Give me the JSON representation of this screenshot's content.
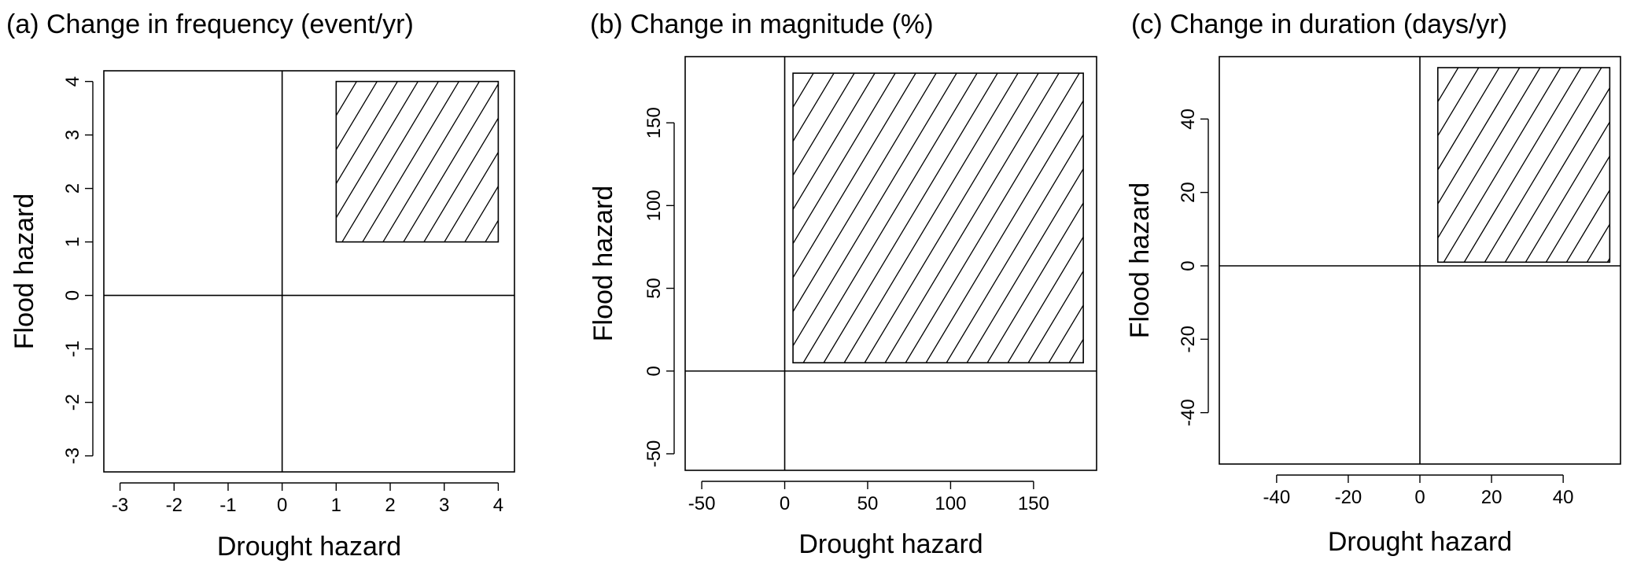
{
  "chart_data": [
    {
      "type": "area",
      "title": "(a) Change in frequency (event/yr)",
      "xlabel": "Drought hazard",
      "ylabel": "Flood hazard",
      "xlim": [
        -3.3,
        4.3
      ],
      "ylim": [
        -3.3,
        4.2
      ],
      "xticks": [
        -3,
        -2,
        -1,
        0,
        1,
        2,
        3,
        4
      ],
      "yticks": [
        -3,
        -2,
        -1,
        0,
        1,
        2,
        3,
        4
      ],
      "reference_lines": {
        "x": 0,
        "y": 0
      },
      "region": {
        "x": [
          1,
          4
        ],
        "y": [
          1,
          4
        ],
        "fill": "hatched"
      },
      "grid": false
    },
    {
      "type": "area",
      "title": "(b) Change in magnitude (%)",
      "xlabel": "Drought hazard",
      "ylabel": "Flood hazard",
      "xlim": [
        -60,
        188
      ],
      "ylim": [
        -60,
        190
      ],
      "xticks": [
        -50,
        0,
        50,
        100,
        150
      ],
      "yticks": [
        -50,
        0,
        50,
        100,
        150
      ],
      "reference_lines": {
        "x": 0,
        "y": 0
      },
      "region": {
        "x": [
          5,
          180
        ],
        "y": [
          5,
          180
        ],
        "fill": "hatched"
      },
      "grid": false
    },
    {
      "type": "area",
      "title": "(c) Change in duration (days/yr)",
      "xlabel": "Drought hazard",
      "ylabel": "Flood hazard",
      "xlim": [
        -56,
        56
      ],
      "ylim": [
        -54,
        57
      ],
      "xticks": [
        -40,
        -20,
        0,
        20,
        40
      ],
      "yticks": [
        -40,
        -20,
        0,
        20,
        40
      ],
      "reference_lines": {
        "x": 0,
        "y": 0
      },
      "region": {
        "x": [
          5,
          53
        ],
        "y": [
          1,
          54
        ],
        "fill": "hatched"
      },
      "grid": false
    }
  ]
}
